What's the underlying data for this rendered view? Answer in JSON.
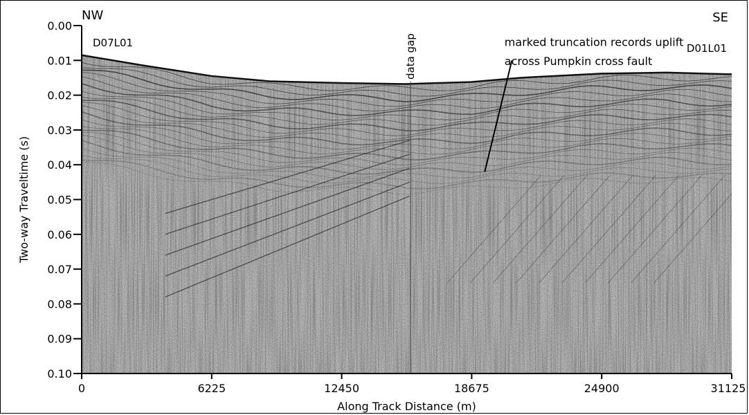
{
  "chart_data": {
    "type": "heatmap",
    "title": "",
    "xlabel": "Along Track Distance (m)",
    "ylabel": "Two-way Traveltime (s)",
    "xlim": [
      0,
      31125
    ],
    "ylim": [
      0.1,
      0.0
    ],
    "x_ticks": [
      "0",
      "6225",
      "12450",
      "18675",
      "24900",
      "31125"
    ],
    "x_tick_values": [
      0,
      6225,
      12450,
      18675,
      24900,
      31125
    ],
    "y_ticks": [
      "0.00",
      "0.01",
      "0.02",
      "0.03",
      "0.04",
      "0.05",
      "0.06",
      "0.07",
      "0.08",
      "0.09",
      "0.10"
    ],
    "y_tick_values": [
      0.0,
      0.01,
      0.02,
      0.03,
      0.04,
      0.05,
      0.06,
      0.07,
      0.08,
      0.09,
      0.1
    ],
    "seafloor": {
      "x": [
        0,
        3000,
        6225,
        9000,
        12450,
        15500,
        18675,
        21000,
        24900,
        28000,
        31125
      ],
      "y": [
        0.0085,
        0.0115,
        0.0145,
        0.016,
        0.0165,
        0.0168,
        0.0162,
        0.015,
        0.0138,
        0.0135,
        0.014
      ]
    },
    "data_gap": {
      "x": 15750,
      "label": "data gap"
    },
    "annotations": [
      {
        "text": "marked truncation records uplift",
        "x": 16600,
        "y": 0.0025
      },
      {
        "text": "across Pumpkin cross fault",
        "x": 16600,
        "y": 0.008
      }
    ],
    "annotation_arrow": {
      "from": [
        20600,
        0.01
      ],
      "to": [
        19300,
        0.042
      ]
    },
    "corner_labels": {
      "left": "NW",
      "right": "SE"
    },
    "line_ids": {
      "left": "D07L01",
      "right": "D01L01"
    }
  }
}
